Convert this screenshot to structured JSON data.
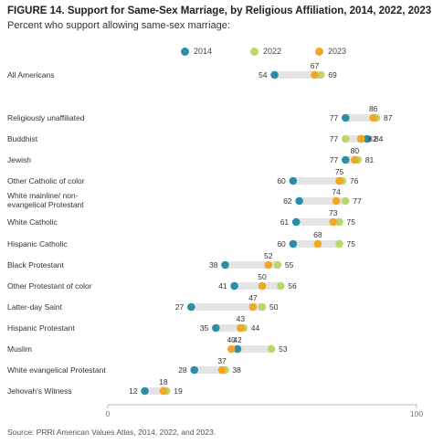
{
  "figure": {
    "title": "FIGURE 14.  Support for Same-Sex Marriage, by Religious Affiliation, 2014, 2022, 2023",
    "subtitle": "Percent who support allowing same-sex marriage:",
    "source": "Source: PRRI American Values Atlas, 2014, 2022, and 2023."
  },
  "colors": {
    "y2014": "#2a8fa6",
    "y2022": "#b9d86a",
    "y2023": "#f2a623",
    "range_bar": "#e4e4e4",
    "axis": "#bbbbbb"
  },
  "chart_data": {
    "type": "dot",
    "xlim": [
      0,
      100
    ],
    "x_ticks": [
      "0",
      "100"
    ],
    "legend": {
      "placement": "top-center",
      "entries": [
        "2014",
        "2022",
        "2023"
      ]
    },
    "series_names": [
      "2014",
      "2022",
      "2023"
    ],
    "rows": [
      {
        "label": "All Americans",
        "y2014": 54,
        "y2022": 69,
        "y2023": 67
      },
      {
        "label": "Religiously unaffiliated",
        "y2014": 77,
        "y2022": 87,
        "y2023": 86
      },
      {
        "label": "Buddhist",
        "y2014": 84,
        "y2022": 77,
        "y2023": 82
      },
      {
        "label": "Jewish",
        "y2014": 77,
        "y2022": 81,
        "y2023": 80
      },
      {
        "label": "Other Catholic of color",
        "y2014": 60,
        "y2022": 76,
        "y2023": 75
      },
      {
        "label": "White mainline/ non-evangelical Protestant",
        "label_lines": [
          "White mainline/ non-",
          "evangelical Protestant"
        ],
        "y2014": 62,
        "y2022": 77,
        "y2023": 74
      },
      {
        "label": "White Catholic",
        "y2014": 61,
        "y2022": 75,
        "y2023": 73
      },
      {
        "label": "Hispanic Catholic",
        "y2014": 60,
        "y2022": 75,
        "y2023": 68
      },
      {
        "label": "Black Protestant",
        "y2014": 38,
        "y2022": 55,
        "y2023": 52
      },
      {
        "label": "Other Protestant of color",
        "y2014": 41,
        "y2022": 56,
        "y2023": 50
      },
      {
        "label": "Latter-day Saint",
        "y2014": 27,
        "y2022": 50,
        "y2023": 47
      },
      {
        "label": "Hispanic Protestant",
        "y2014": 35,
        "y2022": 44,
        "y2023": 43
      },
      {
        "label": "Muslim",
        "y2014": 42,
        "y2022": 53,
        "y2023": 40
      },
      {
        "label": "White evangelical Protestant",
        "y2014": 28,
        "y2022": 38,
        "y2023": 37
      },
      {
        "label": "Jehovah's Witness",
        "y2014": 12,
        "y2022": 19,
        "y2023": 18
      }
    ]
  }
}
